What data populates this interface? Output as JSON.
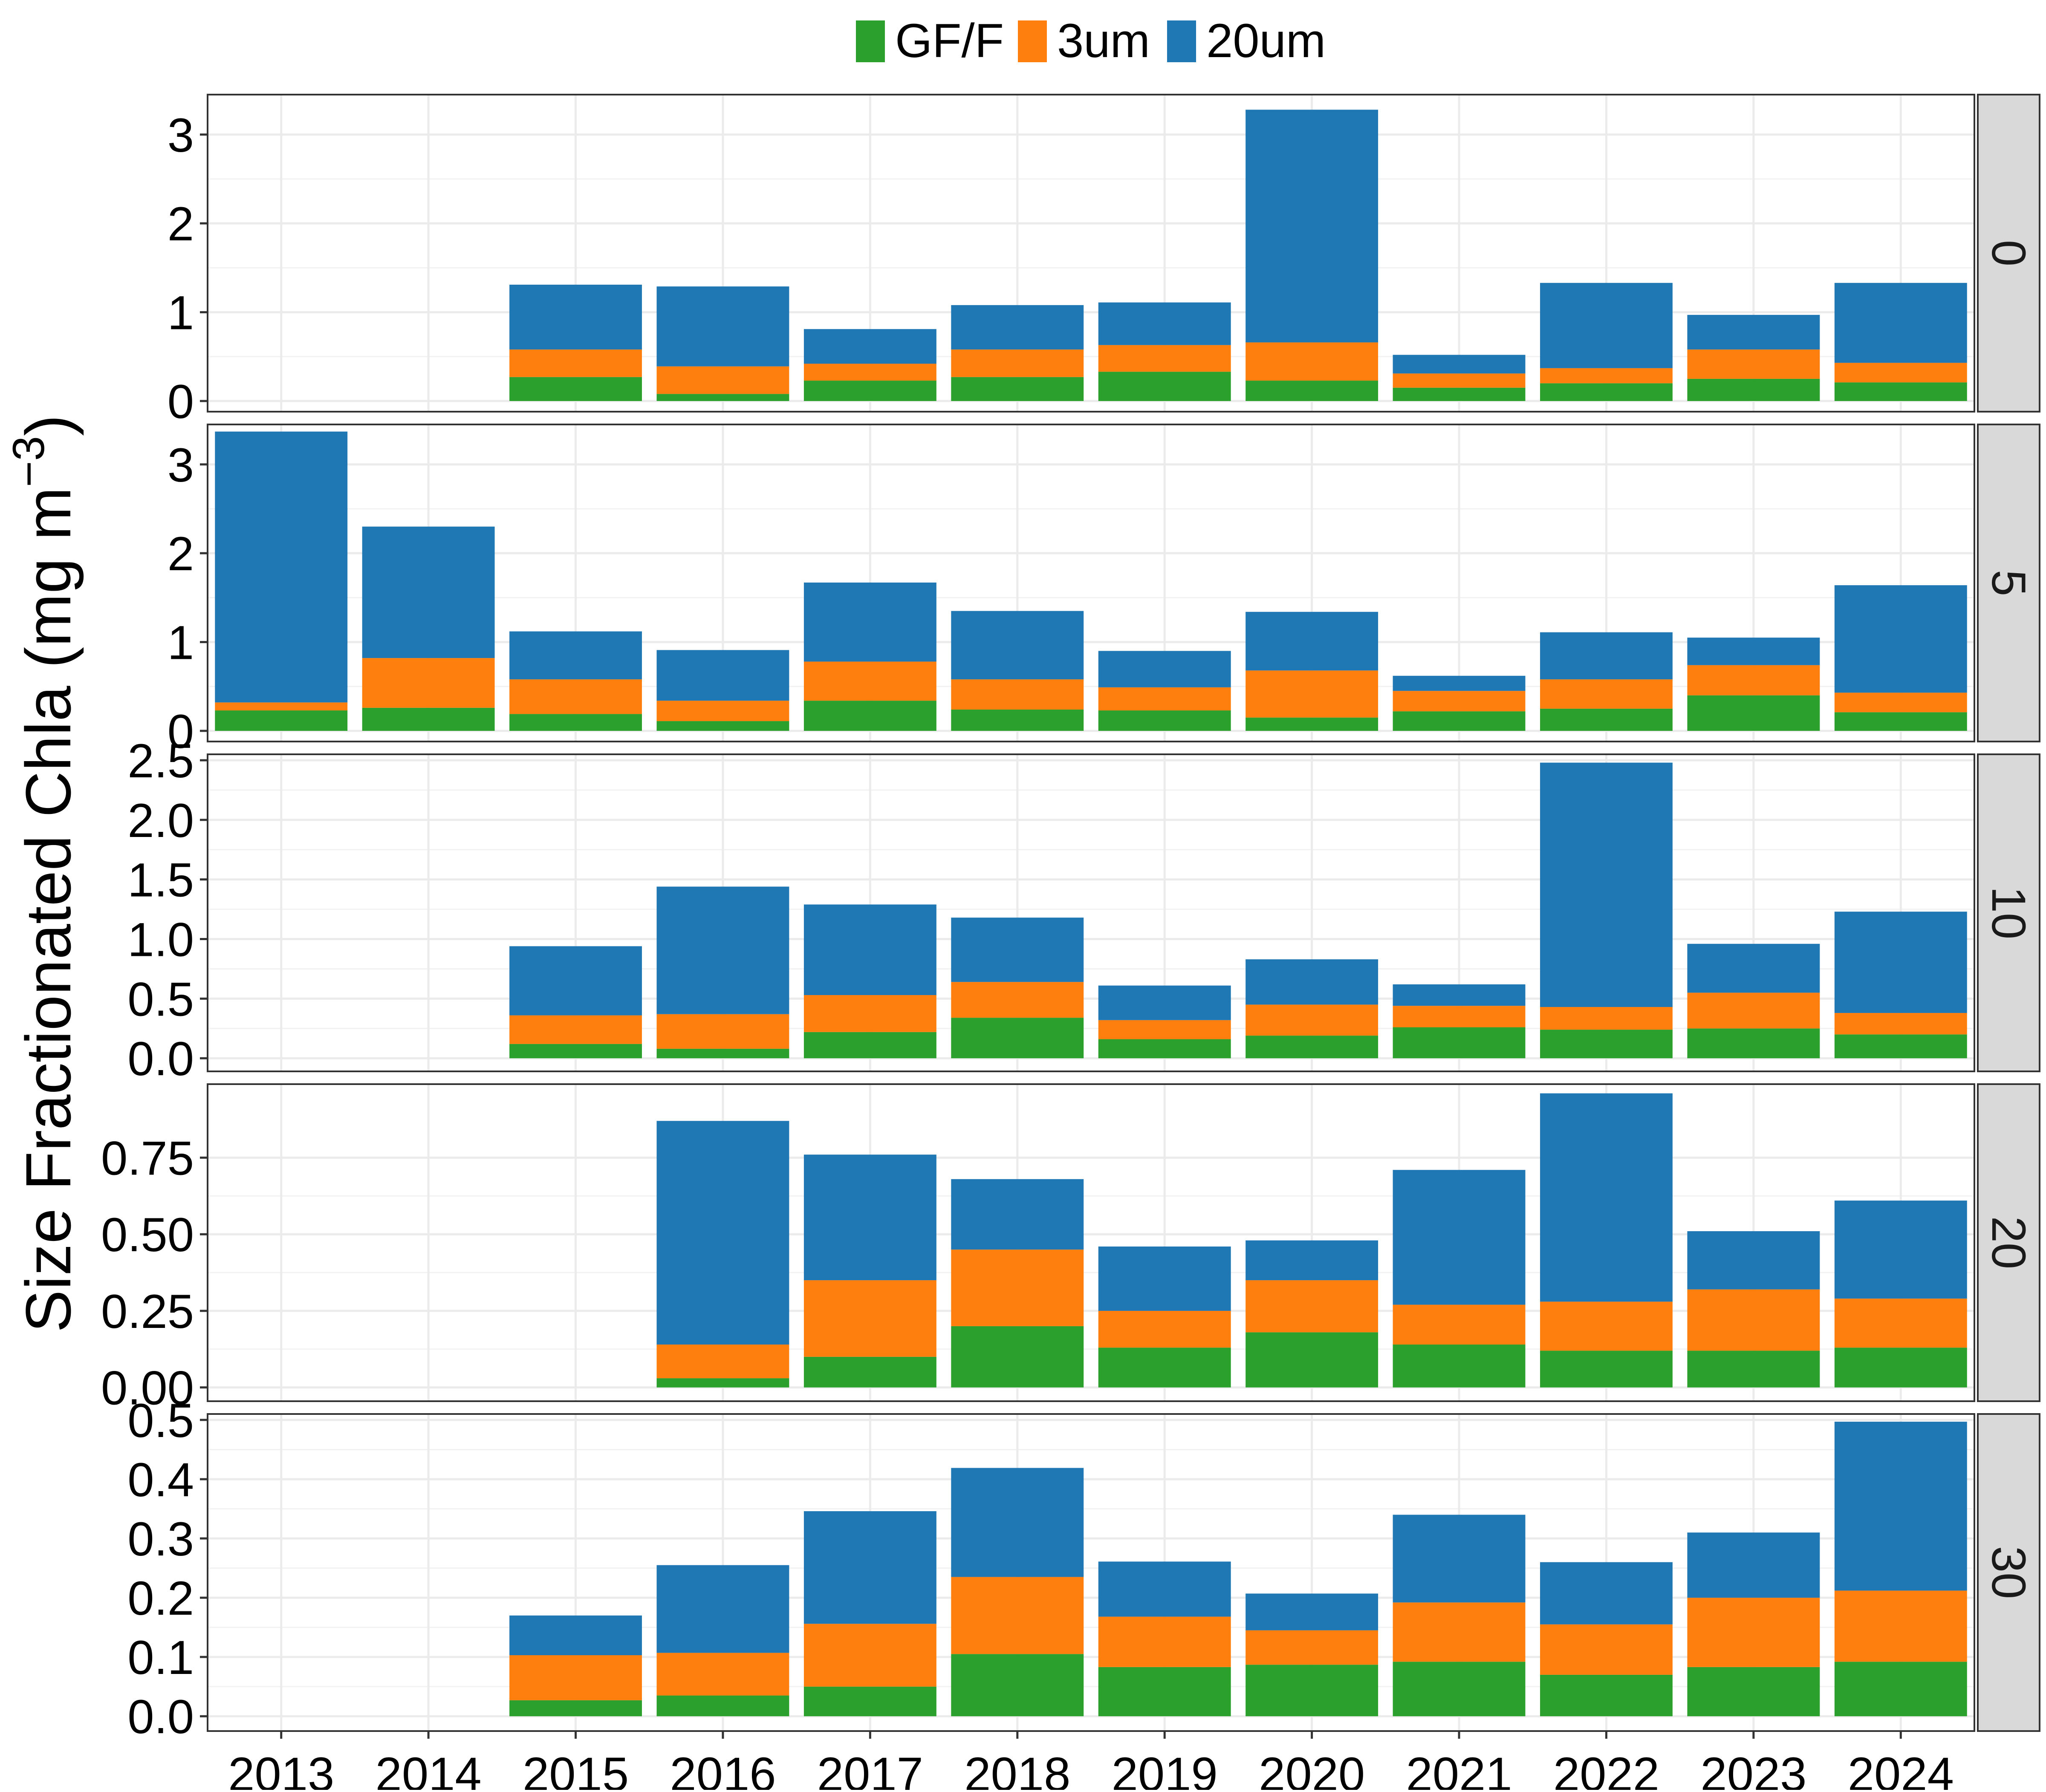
{
  "ylabel": {
    "main": "Size Fractionated Chla (mg m",
    "superscript": "−3",
    "close": ")"
  },
  "chart_data": {
    "type": "bar",
    "stacked": true,
    "facet_by": "depth",
    "categories": [
      "2013",
      "2014",
      "2015",
      "2016",
      "2017",
      "2018",
      "2019",
      "2020",
      "2021",
      "2022",
      "2023",
      "2024"
    ],
    "legend": {
      "position": "top",
      "items": [
        {
          "name": "GF/F",
          "color": "#2ca02c"
        },
        {
          "name": "3um",
          "color": "#ff7f0e"
        },
        {
          "name": "20um",
          "color": "#1f77b4"
        }
      ]
    },
    "grid": true,
    "panels": [
      {
        "strip": "0",
        "ylim": [
          -0.12,
          3.45
        ],
        "yticks": [
          0,
          1,
          2,
          3
        ],
        "ytick_labels": [
          "0",
          "1",
          "2",
          "3"
        ],
        "series": [
          {
            "name": "GF/F",
            "values": [
              null,
              null,
              0.27,
              0.08,
              0.23,
              0.27,
              0.33,
              0.23,
              0.15,
              0.2,
              0.25,
              0.21
            ]
          },
          {
            "name": "3um",
            "values": [
              null,
              null,
              0.31,
              0.31,
              0.19,
              0.31,
              0.3,
              0.43,
              0.16,
              0.17,
              0.33,
              0.22
            ]
          },
          {
            "name": "20um",
            "values": [
              null,
              null,
              0.73,
              0.9,
              0.39,
              0.5,
              0.48,
              2.62,
              0.21,
              0.96,
              0.39,
              0.9
            ]
          }
        ]
      },
      {
        "strip": "5",
        "ylim": [
          -0.12,
          3.45
        ],
        "yticks": [
          0,
          1,
          2,
          3
        ],
        "ytick_labels": [
          "0",
          "1",
          "2",
          "3"
        ],
        "series": [
          {
            "name": "GF/F",
            "values": [
              0.23,
              0.26,
              0.19,
              0.11,
              0.34,
              0.24,
              0.23,
              0.15,
              0.22,
              0.25,
              0.4,
              0.21
            ]
          },
          {
            "name": "3um",
            "values": [
              0.09,
              0.56,
              0.39,
              0.23,
              0.44,
              0.34,
              0.26,
              0.53,
              0.23,
              0.33,
              0.34,
              0.22
            ]
          },
          {
            "name": "20um",
            "values": [
              3.05,
              1.48,
              0.54,
              0.57,
              0.89,
              0.77,
              0.41,
              0.66,
              0.17,
              0.53,
              0.31,
              1.21
            ]
          }
        ]
      },
      {
        "strip": "10",
        "ylim": [
          -0.11,
          2.55
        ],
        "yticks": [
          0,
          0.5,
          1.0,
          1.5,
          2.0,
          2.5
        ],
        "ytick_labels": [
          "0.0",
          "0.5",
          "1.0",
          "1.5",
          "2.0",
          "2.5"
        ],
        "series": [
          {
            "name": "GF/F",
            "values": [
              null,
              null,
              0.12,
              0.08,
              0.22,
              0.34,
              0.16,
              0.19,
              0.26,
              0.24,
              0.25,
              0.2
            ]
          },
          {
            "name": "3um",
            "values": [
              null,
              null,
              0.24,
              0.29,
              0.31,
              0.3,
              0.16,
              0.26,
              0.18,
              0.19,
              0.3,
              0.18
            ]
          },
          {
            "name": "20um",
            "values": [
              null,
              null,
              0.58,
              1.07,
              0.76,
              0.54,
              0.29,
              0.38,
              0.18,
              2.05,
              0.41,
              0.85
            ]
          }
        ]
      },
      {
        "strip": "20",
        "ylim": [
          -0.045,
          0.99
        ],
        "yticks": [
          0,
          0.25,
          0.5,
          0.75
        ],
        "ytick_labels": [
          "0.00",
          "0.25",
          "0.50",
          "0.75"
        ],
        "series": [
          {
            "name": "GF/F",
            "values": [
              null,
              null,
              null,
              0.03,
              0.1,
              0.2,
              0.13,
              0.18,
              0.14,
              0.12,
              0.12,
              0.13
            ]
          },
          {
            "name": "3um",
            "values": [
              null,
              null,
              null,
              0.11,
              0.25,
              0.25,
              0.12,
              0.17,
              0.13,
              0.16,
              0.2,
              0.16
            ]
          },
          {
            "name": "20um",
            "values": [
              null,
              null,
              null,
              0.73,
              0.41,
              0.23,
              0.21,
              0.13,
              0.44,
              0.68,
              0.19,
              0.32
            ]
          }
        ]
      },
      {
        "strip": "30",
        "ylim": [
          -0.025,
          0.51
        ],
        "yticks": [
          0,
          0.1,
          0.2,
          0.3,
          0.4,
          0.5
        ],
        "ytick_labels": [
          "0.0",
          "0.1",
          "0.2",
          "0.3",
          "0.4",
          "0.5"
        ],
        "series": [
          {
            "name": "GF/F",
            "values": [
              null,
              null,
              0.027,
              0.035,
              0.05,
              0.105,
              0.083,
              0.087,
              0.092,
              0.07,
              0.083,
              0.092
            ]
          },
          {
            "name": "3um",
            "values": [
              null,
              null,
              0.076,
              0.072,
              0.106,
              0.13,
              0.085,
              0.058,
              0.1,
              0.085,
              0.117,
              0.12
            ]
          },
          {
            "name": "20um",
            "values": [
              null,
              null,
              0.067,
              0.148,
              0.19,
              0.184,
              0.093,
              0.062,
              0.148,
              0.105,
              0.11,
              0.285
            ]
          }
        ]
      }
    ]
  }
}
